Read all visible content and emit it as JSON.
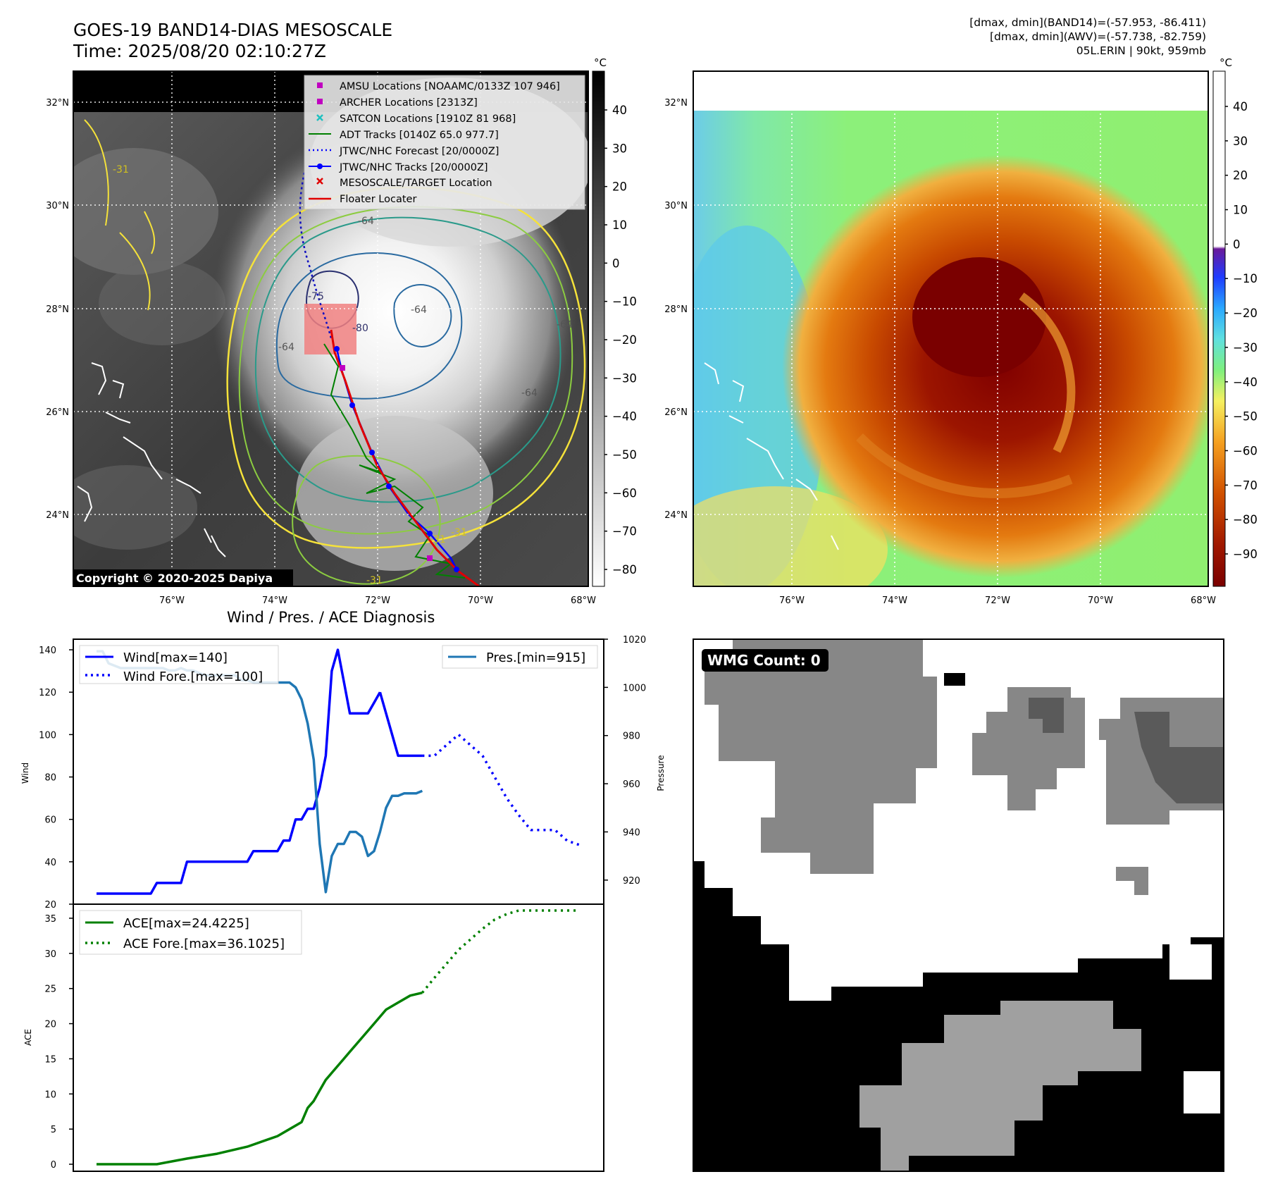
{
  "header": {
    "title_line1": "GOES-19 BAND14-DIAS MESOSCALE",
    "title_line2": "Time: 2025/08/20 02:10:27Z",
    "info_line1": "[dmax, dmin](BAND14)=(-57.953, -86.411)",
    "info_line2": "[dmax, dmin](AWV)=(-57.738, -82.759)",
    "info_line3": "05L.ERIN | 90kt, 959mb"
  },
  "map": {
    "lon_ticks": [
      "76°W",
      "74°W",
      "72°W",
      "70°W",
      "68°W"
    ],
    "lat_ticks": [
      "32°N",
      "30°N",
      "28°N",
      "26°N",
      "24°N"
    ],
    "copyright": "Copyright © 2020-2025 Dapiya",
    "contour_labels": [
      "-64",
      "-64",
      "-64",
      "-64",
      "-64",
      "-31",
      "-31",
      "-31",
      "-31",
      "-75",
      "-80"
    ],
    "legend": [
      {
        "label": "AMSU Locations [NOAAMC/0133Z 107 946]",
        "color": "#c000c0",
        "marker": "square"
      },
      {
        "label": "ARCHER Locations [2313Z]",
        "color": "#c000c0",
        "marker": "square"
      },
      {
        "label": "SATCON Locations [1910Z 81 968]",
        "color": "#20c0c0",
        "marker": "x"
      },
      {
        "label": "ADT Tracks [0140Z 65.0 977.7]",
        "color": "#008000",
        "marker": "line"
      },
      {
        "label": "JTWC/NHC Forecast [20/0000Z]",
        "color": "#0000ff",
        "marker": "dotted"
      },
      {
        "label": "JTWC/NHC Tracks [20/0000Z]",
        "color": "#0000ff",
        "marker": "line-dot"
      },
      {
        "label": "MESOSCALE/TARGET Location",
        "color": "#e00000",
        "marker": "x"
      },
      {
        "label": "Floater Locater",
        "color": "#e00000",
        "marker": "line"
      }
    ]
  },
  "colorbar_left": {
    "unit": "°C",
    "ticks": [
      "40",
      "30",
      "20",
      "10",
      "0",
      "−10",
      "−20",
      "−30",
      "−40",
      "−50",
      "−60",
      "−70",
      "−80"
    ]
  },
  "colorbar_right": {
    "unit": "°C",
    "ticks": [
      "40",
      "30",
      "20",
      "10",
      "0",
      "−10",
      "−20",
      "−30",
      "−40",
      "−50",
      "−60",
      "−70",
      "−80",
      "−90"
    ]
  },
  "diagnosis_title": "Wind / Pres. / ACE Diagnosis",
  "wmg": {
    "label": "WMG Count: 0"
  },
  "chart_data": [
    {
      "type": "line",
      "title": "Wind / Pres. / ACE Diagnosis",
      "ylabel": "Wind",
      "ylim": [
        20,
        145
      ],
      "yticks": [
        20,
        40,
        60,
        80,
        100,
        120,
        140
      ],
      "y2label": "Pressure",
      "y2lim": [
        910,
        1020
      ],
      "y2ticks": [
        920,
        940,
        960,
        980,
        1000,
        1020
      ],
      "legend_left": [
        "Wind[max=140]",
        "Wind Fore.[max=100]"
      ],
      "legend_right": [
        "Pres.[min=915]"
      ],
      "series": [
        {
          "name": "Wind[max=140]",
          "axis": "left",
          "style": "solid",
          "color": "#0000ff",
          "x": [
            0,
            1,
            2,
            3,
            4,
            5,
            6,
            7,
            8,
            9,
            10,
            11,
            12,
            13,
            14,
            15,
            16,
            17,
            18,
            19,
            20,
            21,
            22,
            23,
            24,
            25,
            26,
            27,
            28,
            29,
            30,
            31,
            32,
            33,
            34,
            35,
            36,
            37,
            38,
            39,
            40,
            41,
            42,
            43,
            44,
            45,
            46,
            47
          ],
          "values": [
            25,
            25,
            25,
            25,
            25,
            25,
            25,
            25,
            25,
            25,
            30,
            30,
            30,
            30,
            30,
            40,
            40,
            40,
            40,
            40,
            40,
            40,
            40,
            40,
            40,
            40,
            45,
            45,
            45,
            45,
            45,
            50,
            50,
            60,
            60,
            65,
            65,
            75,
            90,
            130,
            140,
            125,
            110,
            110,
            110,
            110,
            115,
            120
          ]
        },
        {
          "name": "Wind[max=140]",
          "axis": "left",
          "style": "solid",
          "color": "#0000ff",
          "x": [
            47,
            48,
            49,
            50,
            51,
            52,
            53,
            54
          ],
          "values": [
            120,
            110,
            100,
            90,
            90,
            90,
            90,
            90
          ]
        },
        {
          "name": "Wind Fore.[max=100]",
          "axis": "left",
          "style": "dotted",
          "color": "#0000ff",
          "x": [
            54,
            56,
            58,
            60,
            62,
            64,
            66,
            68,
            70,
            72,
            74,
            76,
            78,
            80
          ],
          "values": [
            90,
            90,
            95,
            100,
            95,
            90,
            80,
            70,
            62,
            55,
            55,
            55,
            50,
            48
          ]
        },
        {
          "name": "Pres.[min=915]",
          "axis": "right",
          "style": "solid",
          "color": "#1f77b4",
          "x": [
            0,
            1,
            2,
            3,
            4,
            5,
            6,
            7,
            8,
            9,
            10,
            11,
            12,
            13,
            14,
            15,
            16,
            17,
            18,
            19,
            20,
            21,
            22,
            23,
            24,
            25,
            26,
            27,
            28,
            29,
            30,
            31,
            32,
            33,
            34,
            35,
            36,
            37,
            38,
            39,
            40,
            41,
            42,
            43,
            44,
            45,
            46,
            47,
            48,
            49,
            50,
            51,
            52,
            53,
            54
          ],
          "values": [
            1015,
            1015,
            1010,
            1009,
            1008,
            1008,
            1008,
            1008,
            1008,
            1008,
            1008,
            1008,
            1007,
            1007,
            1008,
            1007,
            1007,
            1006,
            1005,
            1005,
            1005,
            1005,
            1005,
            1005,
            1003,
            1003,
            1002,
            1002,
            1002,
            1002,
            1002,
            1002,
            1002,
            1000,
            995,
            985,
            970,
            935,
            915,
            930,
            935,
            935,
            940,
            940,
            938,
            930,
            932,
            940,
            950,
            955,
            955,
            956,
            956,
            956,
            957
          ]
        }
      ]
    },
    {
      "type": "line",
      "ylabel": "ACE",
      "ylim": [
        -1,
        37
      ],
      "yticks": [
        0,
        5,
        10,
        15,
        20,
        25,
        30,
        35
      ],
      "legend": [
        "ACE[max=24.4225]",
        "ACE Fore.[max=36.1025]"
      ],
      "series": [
        {
          "name": "ACE[max=24.4225]",
          "style": "solid",
          "color": "#008000",
          "x": [
            0,
            5,
            10,
            15,
            20,
            25,
            30,
            32,
            34,
            35,
            36,
            37,
            38,
            39,
            40,
            41,
            42,
            44,
            46,
            48,
            50,
            52,
            54
          ],
          "values": [
            0,
            0,
            0,
            0.8,
            1.5,
            2.5,
            4,
            5,
            6,
            8,
            9,
            10.5,
            12,
            13,
            14,
            15,
            16,
            18,
            20,
            22,
            23,
            24,
            24.4
          ]
        },
        {
          "name": "ACE Fore.[max=36.1025]",
          "style": "dotted",
          "color": "#008000",
          "x": [
            54,
            56,
            58,
            60,
            62,
            64,
            66,
            68,
            70,
            72,
            74,
            76,
            78,
            80
          ],
          "values": [
            24.4,
            26.5,
            28.5,
            30.5,
            32,
            33.5,
            34.8,
            35.6,
            36.1,
            36.1,
            36.1,
            36.1,
            36.1,
            36.1
          ]
        }
      ]
    }
  ]
}
